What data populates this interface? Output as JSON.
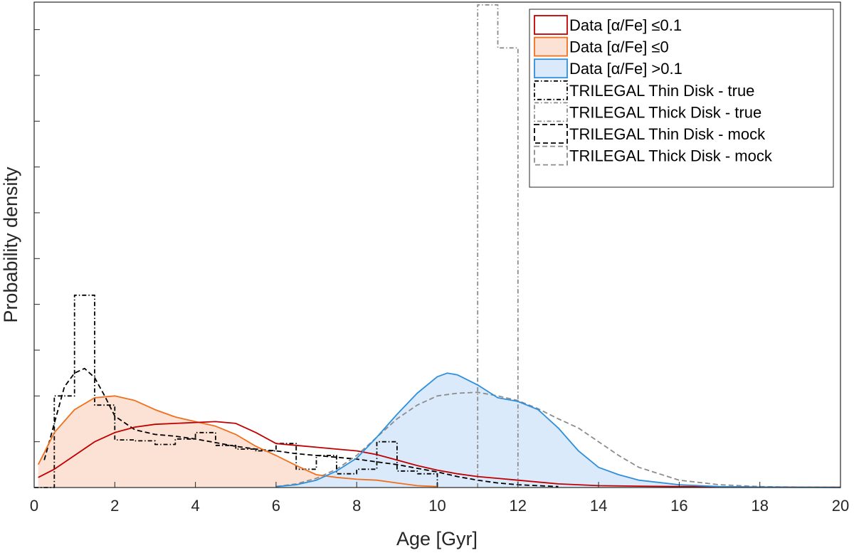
{
  "chart_data": {
    "type": "line",
    "xlabel": "Age [Gyr]",
    "ylabel": "Probability density",
    "xlim": [
      0,
      20
    ],
    "ylim": [
      0,
      0.53
    ],
    "x_ticks": [
      0,
      2,
      4,
      6,
      8,
      10,
      12,
      14,
      16,
      18,
      20
    ],
    "x_tick_labels": [
      "0",
      "2",
      "4",
      "6",
      "8",
      "10",
      "12",
      "14",
      "16",
      "18",
      "20"
    ],
    "y_ticks": [
      0.05,
      0.1,
      0.15,
      0.2,
      0.25,
      0.3,
      0.35,
      0.4,
      0.45,
      0.5
    ],
    "y_tick_labels_shown": false,
    "legend_position": "top-right",
    "series": [
      {
        "name": "Data [α/Fe] ≤0.1",
        "legend_text": "Data [α/Fe] ≤0.1",
        "kind": "kde",
        "color": "#c00000",
        "fill": null,
        "dash": "solid",
        "x": [
          0.1,
          0.5,
          1,
          1.5,
          2,
          2.5,
          3,
          3.5,
          4,
          4.5,
          5,
          5.5,
          6,
          6.5,
          7,
          7.5,
          8,
          8.5,
          9,
          9.5,
          10,
          10.5,
          11,
          11.5,
          12,
          12.5,
          13,
          13.5,
          14,
          15,
          16,
          17,
          18,
          19,
          20
        ],
        "y": [
          0.011,
          0.02,
          0.035,
          0.05,
          0.06,
          0.066,
          0.069,
          0.07,
          0.071,
          0.072,
          0.07,
          0.06,
          0.048,
          0.046,
          0.044,
          0.042,
          0.04,
          0.036,
          0.03,
          0.024,
          0.019,
          0.015,
          0.012,
          0.01,
          0.008,
          0.006,
          0.004,
          0.003,
          0.002,
          0.0015,
          0.001,
          0.0008,
          0.0005,
          0.0003,
          0.0002
        ]
      },
      {
        "name": "Data [α/Fe] ≤0",
        "legend_text": "Data [α/Fe] ≤0",
        "kind": "kde",
        "color": "#f0701e",
        "fill": "#fbe2d4",
        "dash": "solid",
        "x": [
          0.1,
          0.25,
          0.5,
          1,
          1.5,
          2,
          2.5,
          3,
          3.5,
          4,
          4.5,
          5,
          5.5,
          6,
          6.5,
          7,
          7.5,
          8,
          8.5,
          9,
          9.5,
          10
        ],
        "y": [
          0.025,
          0.038,
          0.06,
          0.085,
          0.098,
          0.1,
          0.095,
          0.085,
          0.077,
          0.072,
          0.067,
          0.058,
          0.045,
          0.035,
          0.024,
          0.014,
          0.011,
          0.009,
          0.008,
          0.005,
          0.002,
          0.001
        ]
      },
      {
        "name": "Data [α/Fe] >0.1",
        "legend_text": "Data [α/Fe] >0.1",
        "kind": "kde",
        "color": "#2e8fdc",
        "fill": "#daeafb",
        "dash": "solid",
        "x": [
          6,
          6.5,
          7,
          7.5,
          8,
          8.5,
          9,
          9.5,
          10,
          10.25,
          10.5,
          11,
          11.5,
          12,
          12.5,
          13,
          13.5,
          14,
          14.5,
          15,
          16,
          17,
          18,
          19,
          20
        ],
        "y": [
          0.001,
          0.003,
          0.008,
          0.018,
          0.032,
          0.055,
          0.08,
          0.103,
          0.121,
          0.125,
          0.123,
          0.112,
          0.098,
          0.094,
          0.085,
          0.065,
          0.04,
          0.022,
          0.014,
          0.008,
          0.003,
          0.001,
          0.0005,
          0.0002,
          0.0001
        ]
      },
      {
        "name": "TRILEGAL Thin Disk - true",
        "legend_text": "TRILEGAL Thin Disk - true",
        "kind": "histogram",
        "color": "#000000",
        "fill": null,
        "dash": "dashdot",
        "bin_edges": [
          0,
          0.5,
          1,
          1.5,
          2,
          2.5,
          3,
          3.5,
          4,
          4.5,
          5,
          5.5,
          6,
          6.5,
          7,
          7.5,
          8,
          8.5,
          9,
          9.5,
          10
        ],
        "values": [
          0,
          0.1,
          0.21,
          0.09,
          0.052,
          0.051,
          0.047,
          0.053,
          0.06,
          0.046,
          0.042,
          0.04,
          0.048,
          0.02,
          0.035,
          0.015,
          0.02,
          0.05,
          0.018,
          0.015
        ]
      },
      {
        "name": "TRILEGAL Thick Disk - true",
        "legend_text": "TRILEGAL Thick Disk - true",
        "kind": "histogram",
        "color": "#8c8c8c",
        "fill": null,
        "dash": "dashdot",
        "bin_edges": [
          11,
          11.5,
          12
        ],
        "values": [
          0.527,
          0.48
        ]
      },
      {
        "name": "TRILEGAL Thin Disk - mock",
        "legend_text": "TRILEGAL Thin Disk - mock",
        "kind": "kde",
        "color": "#000000",
        "fill": null,
        "dash": "dashed",
        "x": [
          0.25,
          0.5,
          0.75,
          1,
          1.25,
          1.5,
          1.75,
          2,
          2.5,
          3,
          3.5,
          4,
          4.5,
          5,
          5.5,
          6,
          6.5,
          7,
          7.5,
          8,
          8.5,
          9,
          9.5,
          10,
          10.5,
          11,
          11.5,
          12,
          13
        ],
        "y": [
          0.03,
          0.07,
          0.11,
          0.125,
          0.13,
          0.12,
          0.1,
          0.078,
          0.063,
          0.058,
          0.056,
          0.053,
          0.049,
          0.045,
          0.042,
          0.04,
          0.037,
          0.035,
          0.033,
          0.031,
          0.028,
          0.025,
          0.021,
          0.017,
          0.012,
          0.008,
          0.005,
          0.003,
          0.001
        ]
      },
      {
        "name": "TRILEGAL Thick Disk - mock",
        "legend_text": "TRILEGAL Thick Disk - mock",
        "kind": "kde",
        "color": "#8c8c8c",
        "fill": null,
        "dash": "dashed",
        "x": [
          6,
          6.5,
          7,
          7.5,
          8,
          8.5,
          9,
          9.5,
          10,
          10.5,
          11,
          11.5,
          12,
          12.5,
          13,
          13.5,
          14,
          14.5,
          15,
          16,
          17,
          18,
          19,
          20
        ],
        "y": [
          0.001,
          0.004,
          0.01,
          0.02,
          0.035,
          0.055,
          0.075,
          0.09,
          0.1,
          0.103,
          0.104,
          0.1,
          0.095,
          0.086,
          0.075,
          0.065,
          0.05,
          0.035,
          0.022,
          0.008,
          0.003,
          0.001,
          0.0004,
          0.0002
        ]
      }
    ]
  }
}
